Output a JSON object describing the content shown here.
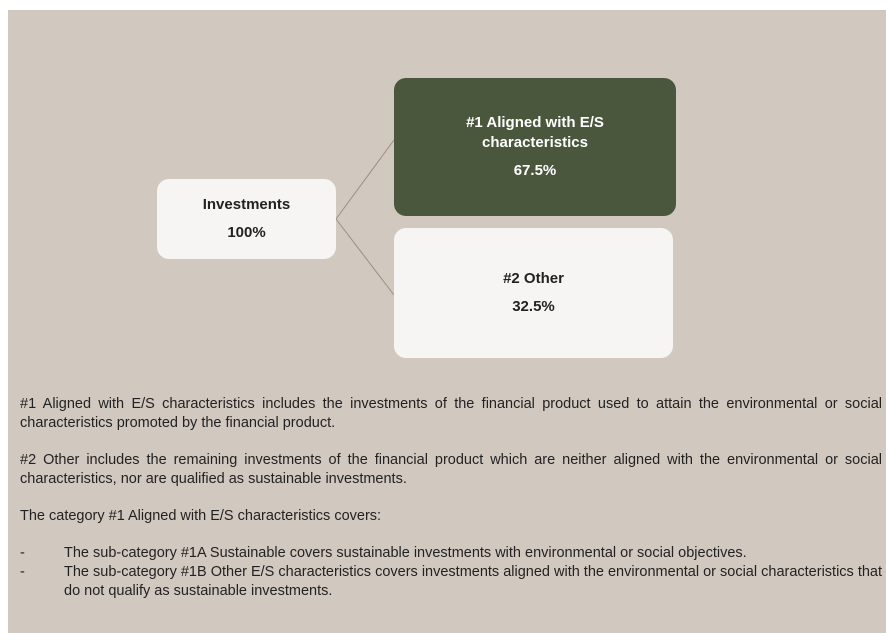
{
  "nodes": [
    {
      "label": "Investments",
      "value": "100%"
    },
    {
      "label": "#1 Aligned with E/S characteristics",
      "value": "67.5%"
    },
    {
      "label": "#2 Other",
      "value": "32.5%"
    }
  ],
  "paragraphs": [
    "#1 Aligned with E/S characteristics includes the investments of the financial product used to attain the environmental or social characteristics promoted by the financial product.",
    "#2 Other includes the remaining investments of the financial product which are neither aligned with the environmental or social characteristics, nor are qualified as sustainable investments.",
    "The category #1 Aligned with E/S characteristics covers:"
  ],
  "bullets": [
    "The sub-category #1A Sustainable covers sustainable investments with environmental or social objectives.",
    "The sub-category #1B Other E/S characteristics covers investments aligned with the environmental or social characteristics that do not qualify as sustainable investments."
  ]
}
